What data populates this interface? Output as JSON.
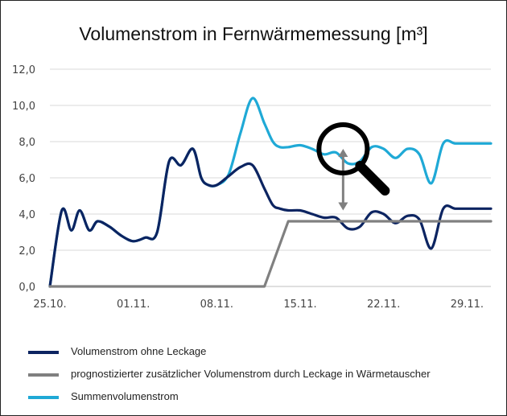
{
  "chart_data": {
    "type": "line",
    "title": "Volumenstrom in Fernwärmemessung [m³]",
    "xlabel": "",
    "ylabel": "",
    "ylim": [
      0,
      12
    ],
    "yticks": [
      "0,0",
      "2,0",
      "4,0",
      "6,0",
      "8,0",
      "10,0",
      "12,0"
    ],
    "xlim": [
      0,
      37
    ],
    "xticks": [
      {
        "x": 0,
        "label": "25.10."
      },
      {
        "x": 7,
        "label": "01.11."
      },
      {
        "x": 14,
        "label": "08.11."
      },
      {
        "x": 21,
        "label": "15.11."
      },
      {
        "x": 28,
        "label": "22.11."
      },
      {
        "x": 35,
        "label": "29.11."
      }
    ],
    "grid": "horizontal",
    "legend_placement": "bottom",
    "series": [
      {
        "name": "Summenvolumenstrom",
        "color": "#1fa9d6",
        "x": [
          0,
          1,
          1.8,
          2.5,
          3.3,
          4,
          5,
          6,
          7,
          8,
          9,
          10,
          11,
          12,
          12.7,
          13.3,
          14,
          15,
          16,
          17,
          18,
          18.7,
          19.3,
          20,
          21,
          22,
          23,
          24,
          25,
          26,
          27,
          28,
          29,
          30,
          31,
          32,
          33,
          34,
          35,
          36,
          37
        ],
        "y": [
          0,
          4.2,
          3.1,
          4.2,
          3.1,
          3.6,
          3.3,
          2.8,
          2.5,
          2.7,
          3.0,
          6.9,
          6.7,
          7.6,
          6.0,
          5.6,
          5.6,
          6.2,
          8.5,
          10.4,
          9.0,
          8.0,
          7.7,
          7.7,
          7.8,
          7.6,
          7.3,
          7.4,
          6.8,
          6.9,
          7.7,
          7.6,
          7.1,
          7.6,
          7.3,
          5.7,
          7.9,
          7.9,
          7.9,
          7.9,
          7.9
        ]
      },
      {
        "name": "Volumenstrom ohne Leckage",
        "color": "#0c2461",
        "x": [
          0,
          1,
          1.8,
          2.5,
          3.3,
          4,
          5,
          6,
          7,
          8,
          9,
          10,
          11,
          12,
          12.7,
          13.3,
          14,
          15,
          16,
          17,
          18,
          18.7,
          19.3,
          20,
          21,
          22,
          23,
          24,
          25,
          26,
          27,
          28,
          29,
          30,
          31,
          32,
          33,
          34,
          35,
          36,
          37
        ],
        "y": [
          0,
          4.2,
          3.1,
          4.2,
          3.1,
          3.6,
          3.3,
          2.8,
          2.5,
          2.7,
          3.0,
          6.9,
          6.7,
          7.6,
          6.0,
          5.6,
          5.6,
          6.1,
          6.6,
          6.7,
          5.4,
          4.5,
          4.3,
          4.2,
          4.2,
          4.0,
          3.8,
          3.8,
          3.2,
          3.3,
          4.1,
          4.0,
          3.5,
          3.9,
          3.7,
          2.1,
          4.3,
          4.3,
          4.3,
          4.3,
          4.3
        ]
      },
      {
        "name": "prognostizierter zusätzlicher Volumenstrom durch Leckage in Wärmetauscher",
        "color": "#808080",
        "x": [
          0,
          18,
          20,
          37
        ],
        "y": [
          0,
          0,
          3.6,
          3.6
        ]
      }
    ],
    "annotations": [
      {
        "type": "double-arrow",
        "x": 24.6,
        "y1": 4.2,
        "y2": 7.6,
        "color": "#808080"
      },
      {
        "type": "magnifier-icon",
        "x": 24.6,
        "y": 7.6
      }
    ]
  },
  "legend": [
    {
      "label": "Volumenstrom ohne Leckage",
      "color": "#0c2461"
    },
    {
      "label": "prognostizierter zusätzlicher Volumenstrom durch Leckage in Wärmetauscher",
      "color": "#808080"
    },
    {
      "label": "Summenvolumenstrom",
      "color": "#1fa9d6"
    }
  ]
}
